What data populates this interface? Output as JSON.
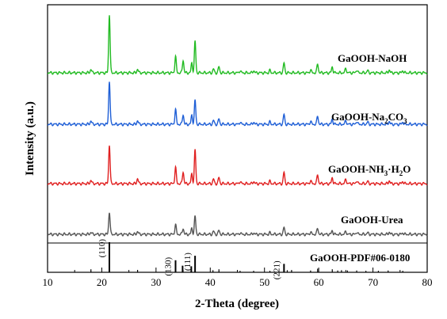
{
  "chart_data": {
    "type": "line",
    "xlabel": "2-Theta (degree)",
    "ylabel": "Intensity (a.u.)",
    "xlim": [
      10,
      80
    ],
    "x_ticks": [
      10,
      20,
      30,
      40,
      50,
      60,
      70,
      80
    ],
    "y_ticks": "none",
    "grid": false,
    "stacked_offset": true,
    "series": [
      {
        "name": "GaOOH-NaOH",
        "label_parts": [
          "GaOOH-NaOH"
        ],
        "color": "#22bb22",
        "peaks": [
          {
            "x": 18.0,
            "h": 0.05
          },
          {
            "x": 21.4,
            "h": 0.78
          },
          {
            "x": 26.6,
            "h": 0.05
          },
          {
            "x": 33.6,
            "h": 0.22
          },
          {
            "x": 35.0,
            "h": 0.17
          },
          {
            "x": 36.6,
            "h": 0.13
          },
          {
            "x": 37.2,
            "h": 0.42
          },
          {
            "x": 40.6,
            "h": 0.05
          },
          {
            "x": 41.6,
            "h": 0.08
          },
          {
            "x": 45.5,
            "h": 0.03
          },
          {
            "x": 48.0,
            "h": 0.03
          },
          {
            "x": 51.0,
            "h": 0.03
          },
          {
            "x": 53.6,
            "h": 0.13
          },
          {
            "x": 58.5,
            "h": 0.04
          },
          {
            "x": 59.8,
            "h": 0.12
          },
          {
            "x": 62.5,
            "h": 0.08
          },
          {
            "x": 65.0,
            "h": 0.06
          },
          {
            "x": 67.0,
            "h": 0.04
          },
          {
            "x": 69.0,
            "h": 0.03
          },
          {
            "x": 73.0,
            "h": 0.04
          },
          {
            "x": 75.5,
            "h": 0.03
          }
        ]
      },
      {
        "name": "GaOOH-Na2CO3",
        "label_parts": [
          "GaOOH-Na",
          "2",
          "CO",
          "3"
        ],
        "color": "#1f5fd6",
        "peaks": [
          {
            "x": 18.0,
            "h": 0.05
          },
          {
            "x": 21.4,
            "h": 0.58
          },
          {
            "x": 26.6,
            "h": 0.05
          },
          {
            "x": 33.6,
            "h": 0.2
          },
          {
            "x": 35.0,
            "h": 0.13
          },
          {
            "x": 36.6,
            "h": 0.12
          },
          {
            "x": 37.2,
            "h": 0.32
          },
          {
            "x": 40.6,
            "h": 0.05
          },
          {
            "x": 41.6,
            "h": 0.07
          },
          {
            "x": 45.5,
            "h": 0.03
          },
          {
            "x": 48.0,
            "h": 0.03
          },
          {
            "x": 51.0,
            "h": 0.03
          },
          {
            "x": 53.6,
            "h": 0.13
          },
          {
            "x": 58.5,
            "h": 0.04
          },
          {
            "x": 59.8,
            "h": 0.11
          },
          {
            "x": 62.5,
            "h": 0.07
          },
          {
            "x": 65.0,
            "h": 0.05
          },
          {
            "x": 67.0,
            "h": 0.04
          },
          {
            "x": 69.0,
            "h": 0.03
          },
          {
            "x": 73.0,
            "h": 0.04
          },
          {
            "x": 75.5,
            "h": 0.03
          }
        ]
      },
      {
        "name": "GaOOH-NH3·H2O",
        "label_parts": [
          "GaOOH-NH",
          "3",
          "·H",
          "2",
          "O"
        ],
        "color": "#e02020",
        "peaks": [
          {
            "x": 18.0,
            "h": 0.05
          },
          {
            "x": 21.4,
            "h": 0.52
          },
          {
            "x": 26.6,
            "h": 0.07
          },
          {
            "x": 33.6,
            "h": 0.22
          },
          {
            "x": 35.0,
            "h": 0.16
          },
          {
            "x": 36.6,
            "h": 0.13
          },
          {
            "x": 37.2,
            "h": 0.45
          },
          {
            "x": 40.6,
            "h": 0.06
          },
          {
            "x": 41.6,
            "h": 0.08
          },
          {
            "x": 45.5,
            "h": 0.03
          },
          {
            "x": 48.0,
            "h": 0.03
          },
          {
            "x": 51.0,
            "h": 0.03
          },
          {
            "x": 53.6,
            "h": 0.15
          },
          {
            "x": 58.5,
            "h": 0.04
          },
          {
            "x": 59.8,
            "h": 0.12
          },
          {
            "x": 62.5,
            "h": 0.08
          },
          {
            "x": 65.0,
            "h": 0.06
          },
          {
            "x": 67.0,
            "h": 0.04
          },
          {
            "x": 69.0,
            "h": 0.03
          },
          {
            "x": 73.0,
            "h": 0.04
          },
          {
            "x": 75.5,
            "h": 0.03
          }
        ]
      },
      {
        "name": "GaOOH-Urea",
        "label_parts": [
          "GaOOH-Urea"
        ],
        "color": "#555555",
        "peaks": [
          {
            "x": 18.0,
            "h": 0.03
          },
          {
            "x": 21.4,
            "h": 0.3
          },
          {
            "x": 26.6,
            "h": 0.04
          },
          {
            "x": 33.6,
            "h": 0.13
          },
          {
            "x": 35.0,
            "h": 0.08
          },
          {
            "x": 36.6,
            "h": 0.08
          },
          {
            "x": 37.2,
            "h": 0.24
          },
          {
            "x": 40.6,
            "h": 0.04
          },
          {
            "x": 41.6,
            "h": 0.05
          },
          {
            "x": 45.5,
            "h": 0.02
          },
          {
            "x": 48.0,
            "h": 0.02
          },
          {
            "x": 51.0,
            "h": 0.02
          },
          {
            "x": 53.6,
            "h": 0.09
          },
          {
            "x": 58.5,
            "h": 0.03
          },
          {
            "x": 59.8,
            "h": 0.08
          },
          {
            "x": 62.5,
            "h": 0.05
          },
          {
            "x": 65.0,
            "h": 0.04
          },
          {
            "x": 67.0,
            "h": 0.03
          },
          {
            "x": 69.0,
            "h": 0.02
          },
          {
            "x": 73.0,
            "h": 0.03
          },
          {
            "x": 75.5,
            "h": 0.02
          }
        ]
      }
    ],
    "reference": {
      "name": "GaOOH-PDF#06-0180",
      "label_parts": [
        "GaOOH-PDF#06-0180"
      ],
      "color": "#000000",
      "lines": [
        {
          "x": 18.0,
          "h": 0.1
        },
        {
          "x": 21.4,
          "h": 1.0,
          "hkl": "(110)"
        },
        {
          "x": 26.6,
          "h": 0.08
        },
        {
          "x": 33.6,
          "h": 0.4,
          "hkl": "(130)"
        },
        {
          "x": 34.9,
          "h": 0.22
        },
        {
          "x": 36.5,
          "h": 0.2
        },
        {
          "x": 37.2,
          "h": 0.55,
          "hkl": "(111)"
        },
        {
          "x": 40.5,
          "h": 0.07
        },
        {
          "x": 41.6,
          "h": 0.1
        },
        {
          "x": 45.5,
          "h": 0.05
        },
        {
          "x": 48.0,
          "h": 0.05
        },
        {
          "x": 51.0,
          "h": 0.05
        },
        {
          "x": 53.6,
          "h": 0.28,
          "hkl": "(221)"
        },
        {
          "x": 54.2,
          "h": 0.07
        },
        {
          "x": 55.0,
          "h": 0.06
        },
        {
          "x": 58.5,
          "h": 0.06
        },
        {
          "x": 59.8,
          "h": 0.12
        },
        {
          "x": 62.5,
          "h": 0.1
        },
        {
          "x": 63.5,
          "h": 0.06
        },
        {
          "x": 64.2,
          "h": 0.07
        },
        {
          "x": 65.3,
          "h": 0.06
        },
        {
          "x": 67.0,
          "h": 0.06
        },
        {
          "x": 68.7,
          "h": 0.05
        },
        {
          "x": 71.0,
          "h": 0.05
        },
        {
          "x": 72.8,
          "h": 0.06
        },
        {
          "x": 75.5,
          "h": 0.05
        }
      ]
    }
  }
}
